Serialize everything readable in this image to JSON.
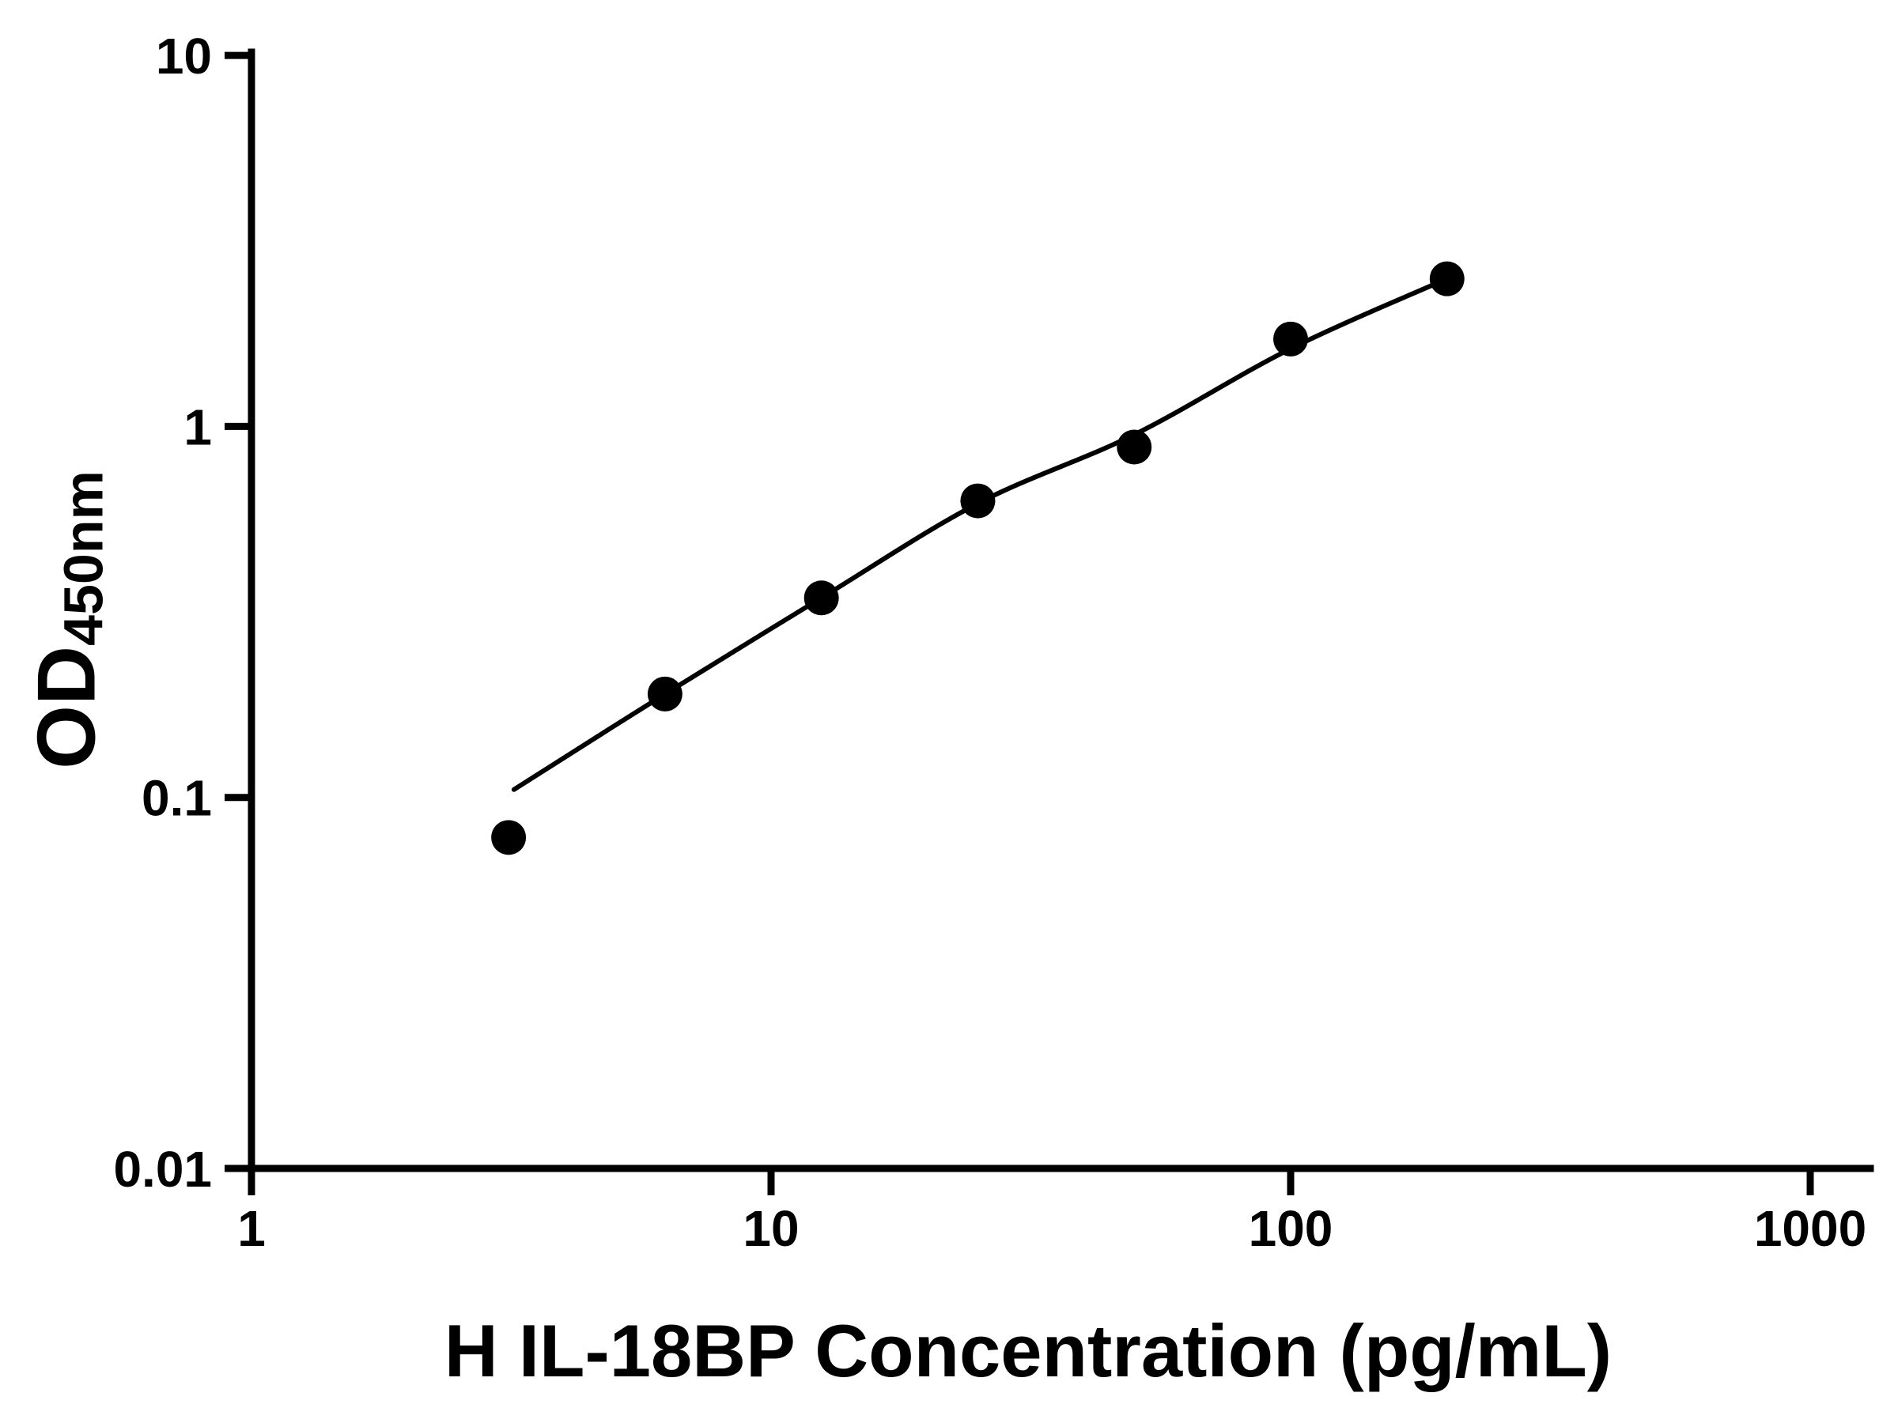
{
  "figure": {
    "background_color": "#ffffff",
    "foreground_color": "#000000"
  },
  "chart_data": {
    "type": "scatter",
    "title": "",
    "xlabel": "H IL-18BP Concentration (pg/mL)",
    "ylabel": "OD450nm",
    "ylabel_main": "OD",
    "ylabel_sub": "450nm",
    "x_scale": "log10",
    "y_scale": "log10",
    "xlim": [
      1,
      1000
    ],
    "ylim": [
      0.01,
      10
    ],
    "x_ticks": [
      1,
      10,
      100,
      1000
    ],
    "x_tick_labels": [
      "1",
      "10",
      "100",
      "1000"
    ],
    "y_ticks": [
      0.01,
      0.1,
      1,
      10
    ],
    "y_tick_labels": [
      "0.01",
      "0.1",
      "1",
      "10"
    ],
    "grid": false,
    "legend": "none",
    "marker_color": "#000000",
    "line_color": "#000000",
    "series": [
      {
        "name": "standard-points",
        "kind": "scatter",
        "marker": "filled-circle",
        "x": [
          3.125,
          6.25,
          12.5,
          25,
          50,
          100,
          200
        ],
        "y": [
          0.078,
          0.19,
          0.345,
          0.63,
          0.88,
          1.72,
          2.5
        ]
      },
      {
        "name": "fit-curve",
        "kind": "line",
        "x": [
          3.2,
          6.25,
          12.5,
          25,
          50,
          100,
          200
        ],
        "y": [
          0.105,
          0.19,
          0.345,
          0.62,
          0.95,
          1.62,
          2.5
        ]
      }
    ]
  }
}
